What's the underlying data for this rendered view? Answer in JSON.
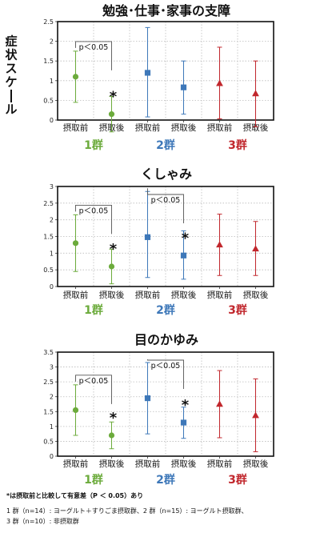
{
  "ylabel": "症状スケール",
  "colors": {
    "g1": "#6cab3c",
    "g2": "#3e78b9",
    "g3": "#c1272d"
  },
  "footnote": {
    "significance": "*は摂取前と比較して有意差（P ＜ 0.05）あり",
    "line1": "1 群（n=14）: ヨーグルト＋すりごま摂取群、2 群（n=15）: ヨーグルト摂取群、",
    "line2": "3 群（n=10）: 非摂取群"
  },
  "chart_data": [
    {
      "type": "scatter",
      "title": "勉強･仕事･家事の支障",
      "ylim": [
        0,
        2.5
      ],
      "yticks": [
        "0",
        "0.5",
        "1",
        "1.5",
        "2",
        "2.5"
      ],
      "categories": [
        "摂取前",
        "摂取後",
        "摂取前",
        "摂取後",
        "摂取前",
        "摂取後"
      ],
      "groups": [
        "1群",
        "2群",
        "3群"
      ],
      "grid": true,
      "series": [
        {
          "group": "1群",
          "marker": "circle",
          "color": "#6cab3c",
          "mean": [
            1.1,
            0.15
          ],
          "lower": [
            0.45,
            -0.3
          ],
          "upper": [
            1.75,
            0.6
          ]
        },
        {
          "group": "2群",
          "marker": "square",
          "color": "#3e78b9",
          "mean": [
            1.2,
            0.83
          ],
          "lower": [
            0.08,
            0.15
          ],
          "upper": [
            2.35,
            1.5
          ]
        },
        {
          "group": "3群",
          "marker": "triangle",
          "color": "#c1272d",
          "mean": [
            0.93,
            0.67
          ],
          "lower": [
            0.03,
            -0.17
          ],
          "upper": [
            1.85,
            1.5
          ]
        }
      ],
      "annotations": [
        {
          "type": "bracket",
          "from": 0,
          "to": 1,
          "text": "p＜0.05"
        },
        {
          "type": "star",
          "at": 1,
          "text": "*"
        }
      ]
    },
    {
      "type": "scatter",
      "title": "くしゃみ",
      "ylim": [
        0,
        3
      ],
      "yticks": [
        "0",
        "0.5",
        "1",
        "1.5",
        "2",
        "2.5",
        "3"
      ],
      "categories": [
        "摂取前",
        "摂取後",
        "摂取前",
        "摂取後",
        "摂取前",
        "摂取後"
      ],
      "groups": [
        "1群",
        "2群",
        "3群"
      ],
      "grid": true,
      "series": [
        {
          "group": "1群",
          "marker": "circle",
          "color": "#6cab3c",
          "mean": [
            1.3,
            0.6
          ],
          "lower": [
            0.45,
            0.08
          ],
          "upper": [
            2.15,
            1.12
          ]
        },
        {
          "group": "2群",
          "marker": "square",
          "color": "#3e78b9",
          "mean": [
            1.48,
            0.93
          ],
          "lower": [
            0.27,
            0.22
          ],
          "upper": [
            2.85,
            1.67
          ]
        },
        {
          "group": "3群",
          "marker": "triangle",
          "color": "#c1272d",
          "mean": [
            1.25,
            1.13
          ],
          "lower": [
            0.33,
            0.33
          ],
          "upper": [
            2.17,
            1.95
          ]
        }
      ],
      "annotations": [
        {
          "type": "bracket",
          "from": 0,
          "to": 1,
          "text": "p＜0.05"
        },
        {
          "type": "star",
          "at": 1,
          "text": "*"
        },
        {
          "type": "bracket",
          "from": 2,
          "to": 3,
          "text": "p＜0.05"
        },
        {
          "type": "star",
          "at": 3,
          "text": "*"
        }
      ]
    },
    {
      "type": "scatter",
      "title": "目のかゆみ",
      "ylim": [
        0,
        3.5
      ],
      "yticks": [
        "0",
        "0.5",
        "1",
        "1.5",
        "2",
        "2.5",
        "3",
        "3.5"
      ],
      "categories": [
        "摂取前",
        "摂取後",
        "摂取前",
        "摂取後",
        "摂取前",
        "摂取後"
      ],
      "groups": [
        "1群",
        "2群",
        "3群"
      ],
      "grid": true,
      "series": [
        {
          "group": "1群",
          "marker": "circle",
          "color": "#6cab3c",
          "mean": [
            1.55,
            0.7
          ],
          "lower": [
            0.7,
            0.25
          ],
          "upper": [
            2.4,
            1.15
          ]
        },
        {
          "group": "2群",
          "marker": "square",
          "color": "#3e78b9",
          "mean": [
            1.95,
            1.13
          ],
          "lower": [
            0.75,
            0.6
          ],
          "upper": [
            3.15,
            1.65
          ]
        },
        {
          "group": "3群",
          "marker": "triangle",
          "color": "#c1272d",
          "mean": [
            1.75,
            1.37
          ],
          "lower": [
            0.62,
            0.15
          ],
          "upper": [
            2.88,
            2.6
          ]
        }
      ],
      "annotations": [
        {
          "type": "bracket",
          "from": 0,
          "to": 1,
          "text": "p＜0.05"
        },
        {
          "type": "star",
          "at": 1,
          "text": "*"
        },
        {
          "type": "bracket",
          "from": 2,
          "to": 3,
          "text": "p＜0.05"
        },
        {
          "type": "star",
          "at": 3,
          "text": "*"
        }
      ]
    }
  ]
}
